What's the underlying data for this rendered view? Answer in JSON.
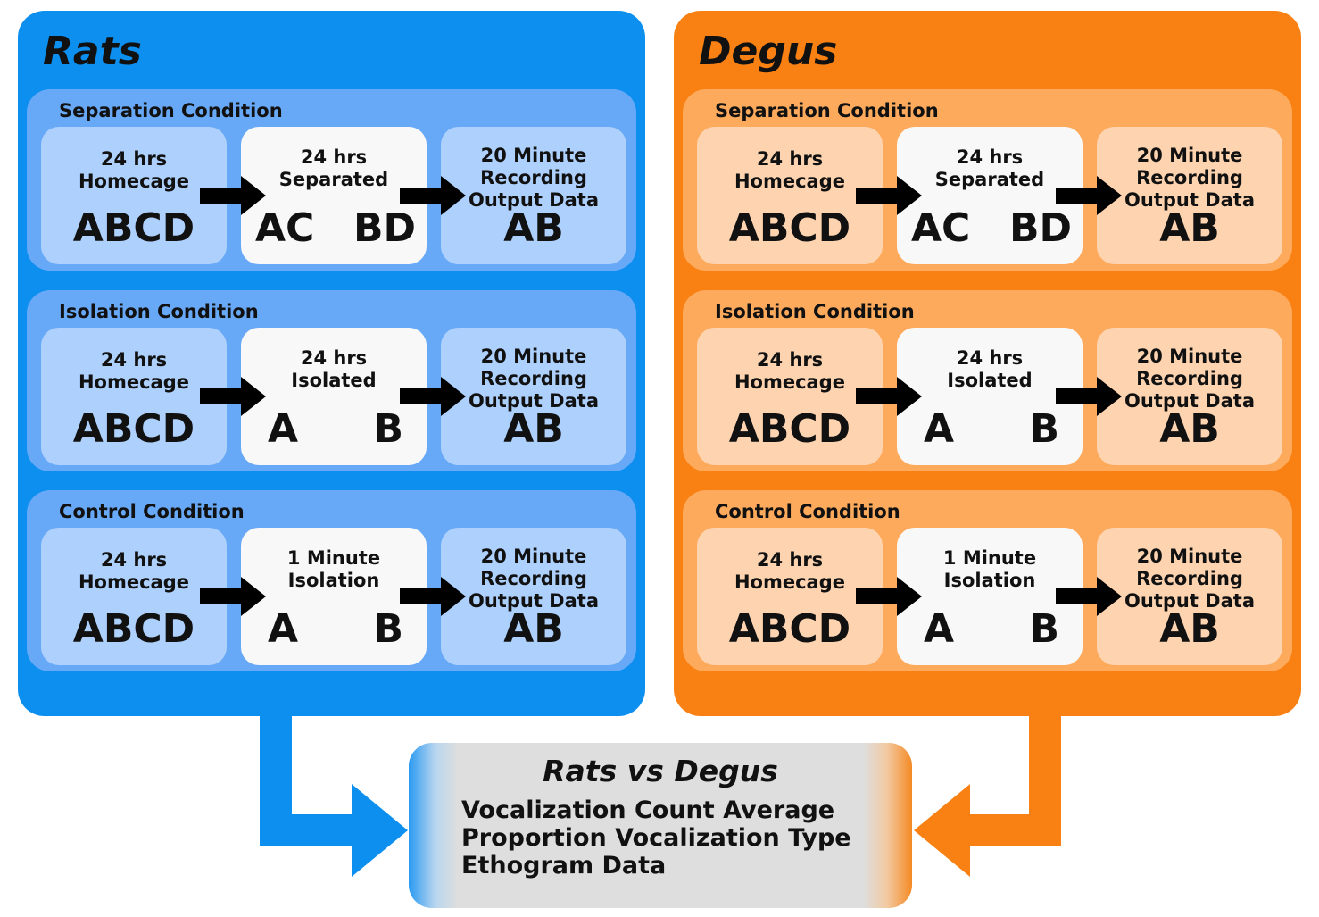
{
  "groups": [
    {
      "title": "Rats",
      "conditions": [
        {
          "title": "Separation Condition",
          "homecage": {
            "label": "24 hrs\nHomecage",
            "animals": "ABCD"
          },
          "middle": {
            "label": "24 hrs\nSeparated",
            "left": "AC",
            "right": "BD"
          },
          "recording": {
            "label": "20 Minute\nRecording\nOutput Data",
            "animals": "AB"
          }
        },
        {
          "title": "Isolation Condition",
          "homecage": {
            "label": "24 hrs\nHomecage",
            "animals": "ABCD"
          },
          "middle": {
            "label": "24 hrs\nIsolated",
            "left": "A",
            "right": "B"
          },
          "recording": {
            "label": "20 Minute\nRecording\nOutput Data",
            "animals": "AB"
          }
        },
        {
          "title": "Control Condition",
          "homecage": {
            "label": "24 hrs\nHomecage",
            "animals": "ABCD"
          },
          "middle": {
            "label": "1 Minute\nIsolation",
            "left": "A",
            "right": "B"
          },
          "recording": {
            "label": "20 Minute\nRecording\nOutput Data",
            "animals": "AB"
          }
        }
      ]
    },
    {
      "title": "Degus",
      "conditions": [
        {
          "title": "Separation Condition",
          "homecage": {
            "label": "24 hrs\nHomecage",
            "animals": "ABCD"
          },
          "middle": {
            "label": "24 hrs\nSeparated",
            "left": "AC",
            "right": "BD"
          },
          "recording": {
            "label": "20 Minute\nRecording\nOutput Data",
            "animals": "AB"
          }
        },
        {
          "title": "Isolation Condition",
          "homecage": {
            "label": "24 hrs\nHomecage",
            "animals": "ABCD"
          },
          "middle": {
            "label": "24 hrs\nIsolated",
            "left": "A",
            "right": "B"
          },
          "recording": {
            "label": "20 Minute\nRecording\nOutput Data",
            "animals": "AB"
          }
        },
        {
          "title": "Control Condition",
          "homecage": {
            "label": "24 hrs\nHomecage",
            "animals": "ABCD"
          },
          "middle": {
            "label": "1 Minute\nIsolation",
            "left": "A",
            "right": "B"
          },
          "recording": {
            "label": "20 Minute\nRecording\nOutput Data",
            "animals": "AB"
          }
        }
      ]
    }
  ],
  "result": {
    "title": "Rats vs Degus",
    "lines": [
      "Vocalization Count Average",
      "Proportion Vocalization Type",
      "Ethogram Data"
    ]
  },
  "colors": {
    "rats": "#0d8ff0",
    "degus": "#f98113",
    "arrow": "#000000"
  }
}
